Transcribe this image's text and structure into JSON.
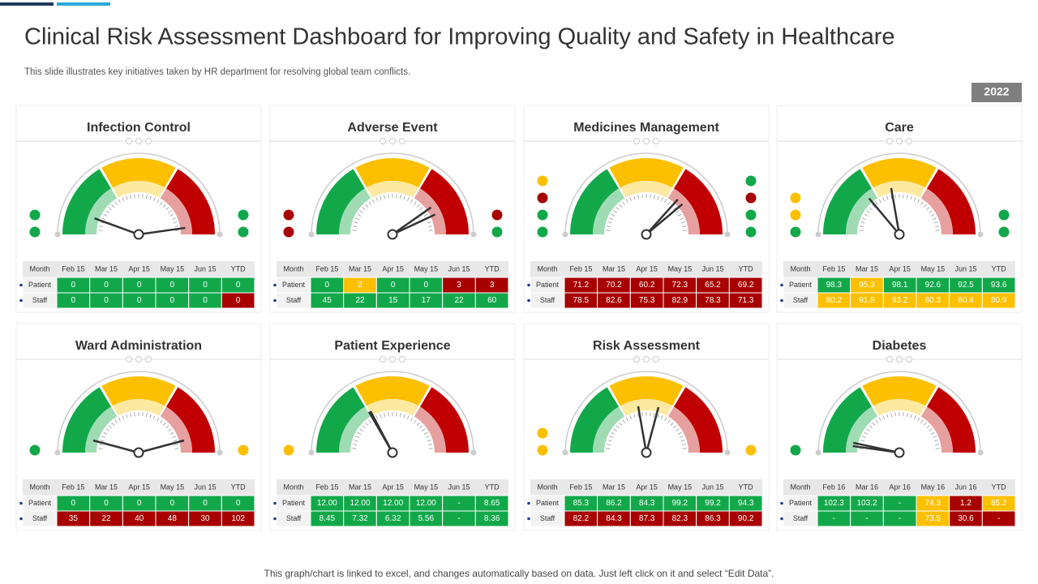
{
  "header": {
    "title": "Clinical Risk Assessment Dashboard for Improving Quality and Safety in Healthcare",
    "subtitle": "This slide illustrates key initiatives taken by HR department for resolving global team conflicts.",
    "year": "2022"
  },
  "panels": [
    {
      "title": "Infection Control",
      "columns": [
        "Month",
        "Feb 15",
        "Mar 15",
        "Apr 15",
        "May 15",
        "Jun 15",
        "YTD"
      ],
      "left_dots": [
        "#12a84a",
        "#12a84a"
      ],
      "right_dots": [
        "#12a84a",
        "#12a84a"
      ],
      "rows": [
        {
          "label": "Patient",
          "cells": [
            "0",
            "0",
            "0",
            "0",
            "0",
            "0"
          ],
          "colors": [
            "#12a84a",
            "#12a84a",
            "#12a84a",
            "#12a84a",
            "#12a84a",
            "#12a84a"
          ]
        },
        {
          "label": "Staff",
          "cells": [
            "0",
            "0",
            "0",
            "0",
            "0",
            "0"
          ],
          "colors": [
            "#12a84a",
            "#12a84a",
            "#12a84a",
            "#12a84a",
            "#12a84a",
            "#a80000"
          ]
        }
      ]
    },
    {
      "title": "Adverse Event",
      "columns": [
        "Month",
        "Feb 15",
        "Mar 15",
        "Apr 15",
        "May 15",
        "Jun 15",
        "YTD"
      ],
      "left_dots": [
        "#a80000",
        "#a80000"
      ],
      "right_dots": [
        "#12a84a",
        "#a80000"
      ],
      "rows": [
        {
          "label": "Patient",
          "cells": [
            "0",
            "2",
            "0",
            "0",
            "3",
            "3"
          ],
          "colors": [
            "#12a84a",
            "#fcc000",
            "#12a84a",
            "#12a84a",
            "#a80000",
            "#a80000"
          ]
        },
        {
          "label": "Staff",
          "cells": [
            "45",
            "22",
            "15",
            "17",
            "22",
            "60"
          ],
          "colors": [
            "#12a84a",
            "#12a84a",
            "#12a84a",
            "#12a84a",
            "#12a84a",
            "#12a84a"
          ]
        }
      ]
    },
    {
      "title": "Medicines Management",
      "columns": [
        "Month",
        "Feb 15",
        "Mar 15",
        "Apr 15",
        "May 15",
        "Jun 15",
        "YTD"
      ],
      "left_dots": [
        "#12a84a",
        "#12a84a",
        "#a80000",
        "#fcc000"
      ],
      "right_dots": [
        "#12a84a",
        "#12a84a",
        "#a80000",
        "#12a84a"
      ],
      "rows": [
        {
          "label": "Patient",
          "cells": [
            "71.2",
            "70.2",
            "60.2",
            "72.3",
            "65.2",
            "69.2"
          ],
          "colors": [
            "#a80000",
            "#a80000",
            "#a80000",
            "#a80000",
            "#a80000",
            "#a80000"
          ]
        },
        {
          "label": "Staff",
          "cells": [
            "78.5",
            "82.6",
            "75.3",
            "82.9",
            "78.3",
            "71.3"
          ],
          "colors": [
            "#a80000",
            "#a80000",
            "#a80000",
            "#a80000",
            "#a80000",
            "#a80000"
          ]
        }
      ]
    },
    {
      "title": "Care",
      "columns": [
        "Month",
        "Feb 15",
        "Mar 15",
        "Apr 15",
        "May 15",
        "Jun 15",
        "YTD"
      ],
      "left_dots": [
        "#12a84a",
        "#fcc000",
        "#fcc000"
      ],
      "right_dots": [
        "#12a84a",
        "#12a84a"
      ],
      "rows": [
        {
          "label": "Patient",
          "cells": [
            "98.3",
            "95.3",
            "98.1",
            "92.6",
            "92.5",
            "93.6"
          ],
          "colors": [
            "#12a84a",
            "#fcc000",
            "#12a84a",
            "#12a84a",
            "#12a84a",
            "#12a84a"
          ]
        },
        {
          "label": "Staff",
          "cells": [
            "80.2",
            "91.8",
            "93.2",
            "80.3",
            "80.4",
            "80.9"
          ],
          "colors": [
            "#fcc000",
            "#fcc000",
            "#fcc000",
            "#fcc000",
            "#fcc000",
            "#fcc000"
          ]
        }
      ]
    },
    {
      "title": "Ward Administration",
      "columns": [
        "Month",
        "Feb 15",
        "Mar 15",
        "Apr 15",
        "May 15",
        "Jun 15",
        "YTD"
      ],
      "left_dots": [
        "#12a84a"
      ],
      "right_dots": [
        "#fcc000"
      ],
      "rows": [
        {
          "label": "Patient",
          "cells": [
            "0",
            "0",
            "0",
            "0",
            "0",
            "0"
          ],
          "colors": [
            "#12a84a",
            "#12a84a",
            "#12a84a",
            "#12a84a",
            "#12a84a",
            "#12a84a"
          ]
        },
        {
          "label": "Staff",
          "cells": [
            "35",
            "22",
            "40",
            "48",
            "30",
            "102"
          ],
          "colors": [
            "#a80000",
            "#a80000",
            "#a80000",
            "#a80000",
            "#a80000",
            "#a80000"
          ]
        }
      ]
    },
    {
      "title": "Patient Experience",
      "columns": [
        "Month",
        "Feb 15",
        "Mar 15",
        "Apr 15",
        "May 15",
        "Jun 15",
        "YTD"
      ],
      "left_dots": [
        "#fcc000"
      ],
      "right_dots": [],
      "rows": [
        {
          "label": "Patient",
          "cells": [
            "12.00",
            "12.00",
            "12.00",
            "12.00",
            "-",
            "8.65"
          ],
          "colors": [
            "#12a84a",
            "#12a84a",
            "#12a84a",
            "#12a84a",
            "#12a84a",
            "#12a84a"
          ]
        },
        {
          "label": "Staff",
          "cells": [
            "8.45",
            "7.32",
            "6.32",
            "5.56",
            "-",
            "8.36"
          ],
          "colors": [
            "#12a84a",
            "#12a84a",
            "#12a84a",
            "#12a84a",
            "#12a84a",
            "#12a84a"
          ]
        }
      ]
    },
    {
      "title": "Risk Assessment",
      "columns": [
        "Month",
        "Feb 15",
        "Mar 15",
        "Apr 15",
        "May 15",
        "Jun 15",
        "YTD"
      ],
      "left_dots": [
        "#fcc000",
        "#fcc000"
      ],
      "right_dots": [
        "#fcc000"
      ],
      "rows": [
        {
          "label": "Patient",
          "cells": [
            "85.3",
            "86.2",
            "84.3",
            "99.2",
            "99.2",
            "94.3"
          ],
          "colors": [
            "#12a84a",
            "#12a84a",
            "#12a84a",
            "#12a84a",
            "#12a84a",
            "#12a84a"
          ]
        },
        {
          "label": "Staff",
          "cells": [
            "82.2",
            "84.3",
            "87.3",
            "82.3",
            "86.3",
            "90.2"
          ],
          "colors": [
            "#a80000",
            "#a80000",
            "#a80000",
            "#a80000",
            "#a80000",
            "#a80000"
          ]
        }
      ]
    },
    {
      "title": "Diabetes",
      "columns": [
        "Month",
        "Feb 16",
        "Mar 16",
        "Apr 16",
        "May 16",
        "Jun 16",
        "YTD"
      ],
      "left_dots": [
        "#12a84a"
      ],
      "right_dots": [],
      "rows": [
        {
          "label": "Patient",
          "cells": [
            "102.3",
            "103.2",
            "-",
            "74.3",
            "1.2",
            "85.2"
          ],
          "colors": [
            "#12a84a",
            "#12a84a",
            "#12a84a",
            "#fcc000",
            "#a80000",
            "#fcc000"
          ]
        },
        {
          "label": "Staff",
          "cells": [
            "-",
            "-",
            "-",
            "73.5",
            "30.6",
            "-"
          ],
          "colors": [
            "#12a84a",
            "#12a84a",
            "#12a84a",
            "#fcc000",
            "#a80000",
            "#a80000"
          ]
        }
      ]
    }
  ],
  "footer": "This graph/chart is linked to excel, and changes automatically based on data. Just left click on it and select “Edit Data”."
}
